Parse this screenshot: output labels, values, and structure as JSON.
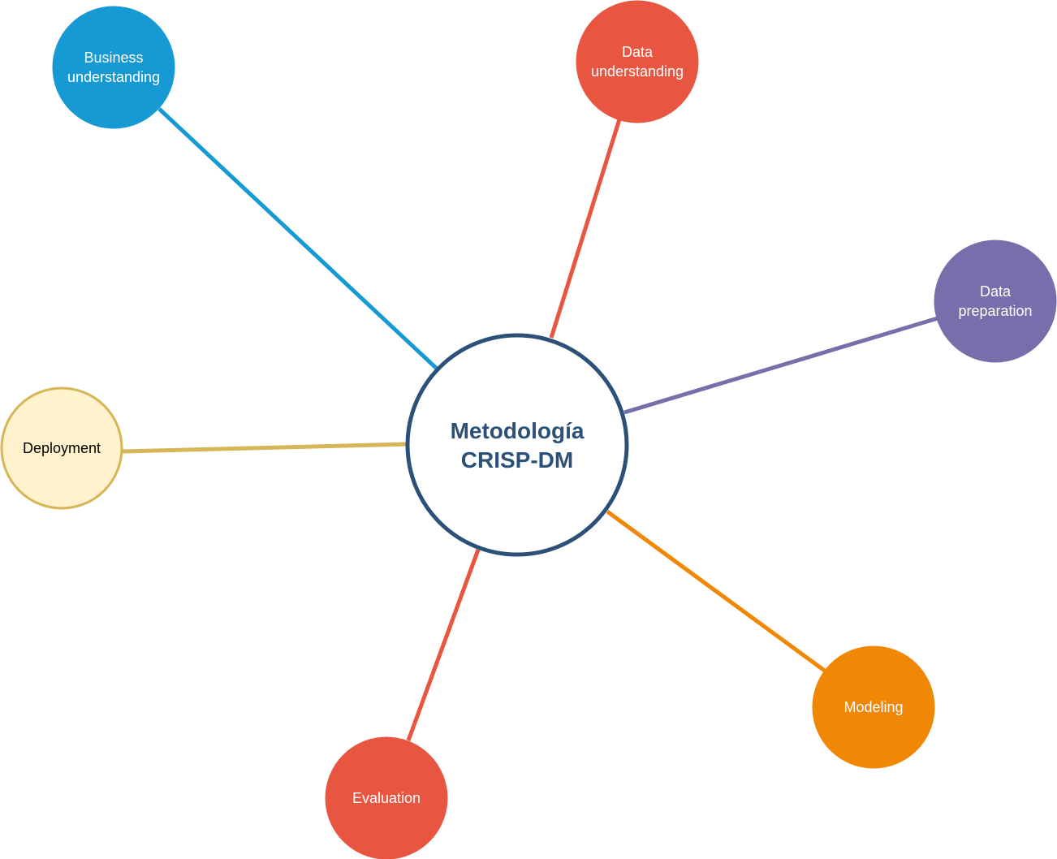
{
  "center": {
    "lines": [
      "Metodología",
      "CRISP-DM"
    ],
    "text_color": "#2c5178",
    "border_color": "#2c5178",
    "fill": "#ffffff"
  },
  "nodes": [
    {
      "id": "business-understanding",
      "lines": [
        "Business",
        "understanding"
      ],
      "fill": "#1799d4",
      "stroke": "#1799d4",
      "text_color": "#ffffff",
      "line_color": "#1799d4"
    },
    {
      "id": "data-understanding",
      "lines": [
        "Data",
        "understanding"
      ],
      "fill": "#e85642",
      "stroke": "#e85642",
      "text_color": "#ffffff",
      "line_color": "#e85642"
    },
    {
      "id": "data-preparation",
      "lines": [
        "Data",
        "preparation"
      ],
      "fill": "#766fab",
      "stroke": "#766fab",
      "text_color": "#ffffff",
      "line_color": "#766fab"
    },
    {
      "id": "modeling",
      "lines": [
        "Modeling"
      ],
      "fill": "#f08705",
      "stroke": "#f08705",
      "text_color": "#ffffff",
      "line_color": "#f08705"
    },
    {
      "id": "evaluation",
      "lines": [
        "Evaluation"
      ],
      "fill": "#e85642",
      "stroke": "#e85642",
      "text_color": "#ffffff",
      "line_color": "#e85642"
    },
    {
      "id": "deployment",
      "lines": [
        "Deployment"
      ],
      "fill": "#fff2cc",
      "stroke": "#d6b656",
      "text_color": "#000000",
      "line_color": "#d6b656"
    }
  ]
}
